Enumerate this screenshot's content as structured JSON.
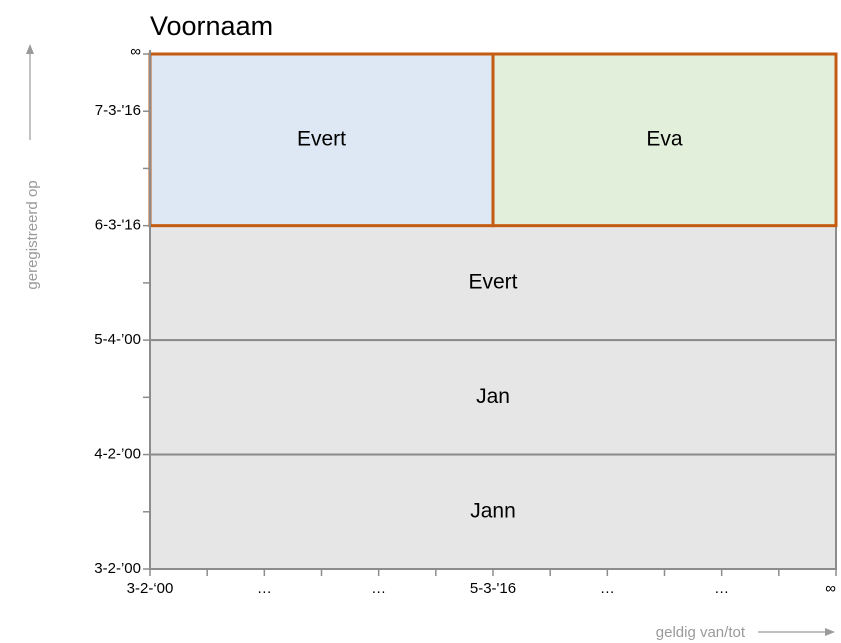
{
  "title": "Voornaam",
  "y_axis_label": "geregistreerd op",
  "x_axis_label": "geldig van/tot",
  "y_ticks": [
    "∞",
    "7-3-'16",
    "6-3-'16",
    "5-4-’00",
    "4-2-’00",
    "3-2-’00"
  ],
  "x_ticks": [
    "3-2-‘00",
    "…",
    "…",
    "5-3-'16",
    "…",
    "…",
    "∞"
  ],
  "cells": [
    {
      "label": "Evert"
    },
    {
      "label": "Eva"
    },
    {
      "label": "Evert"
    },
    {
      "label": "Jan"
    },
    {
      "label": "Jann"
    }
  ]
}
